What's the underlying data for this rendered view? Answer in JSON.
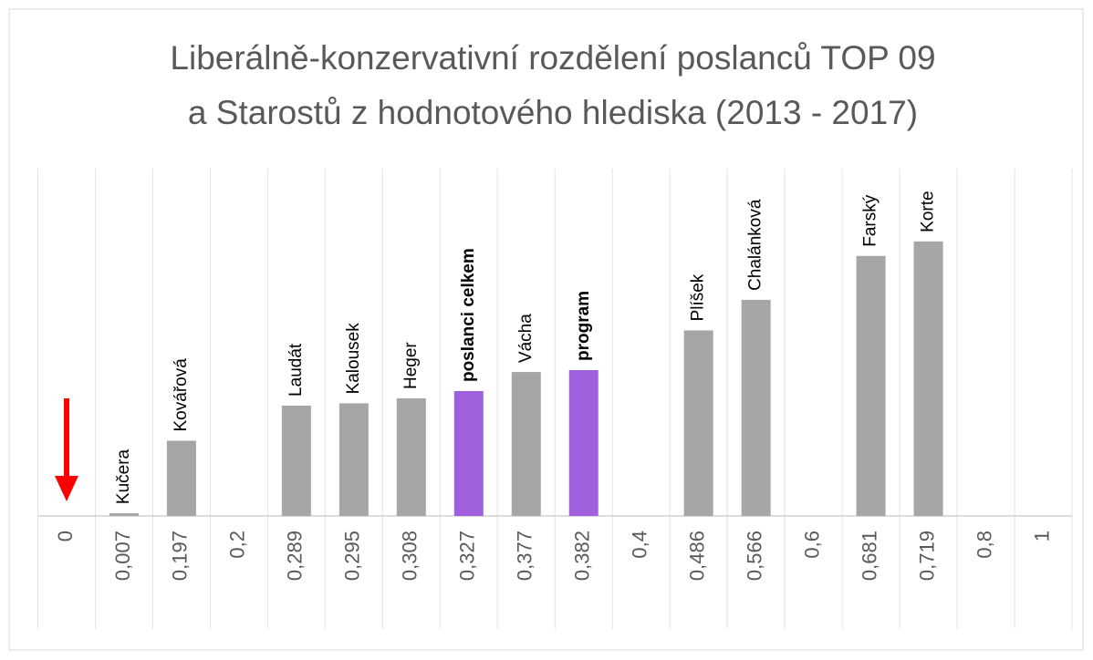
{
  "chart_data": {
    "type": "bar",
    "title": "Liberálně-konzervativní rozdělení poslanců TOP 09",
    "subtitle": "a Starostů z hodnotového hlediska (2013 - 2017)",
    "categories": [
      "0",
      "0,007",
      "0,197",
      "0,2",
      "0,289",
      "0,295",
      "0,308",
      "0,327",
      "0,377",
      "0,382",
      "0,4",
      "0,486",
      "0,566",
      "0,6",
      "0,681",
      "0,719",
      "0,8",
      "1"
    ],
    "values": [
      null,
      0.007,
      0.197,
      null,
      0.289,
      0.295,
      0.308,
      0.327,
      0.377,
      0.382,
      null,
      0.486,
      0.566,
      null,
      0.681,
      0.719,
      null,
      null
    ],
    "value_labels": [
      null,
      "Kučera",
      "Kovářová",
      null,
      "Laudát",
      "Kalousek",
      "Heger",
      "poslanci celkem",
      "Vácha",
      "program",
      null,
      "Plíšek",
      "Chalánková",
      null,
      "Farský",
      "Korte",
      null,
      null
    ],
    "color": "#a6a6a6",
    "colors": [
      "#a6a6a6",
      "#a6a6a6",
      "#a6a6a6",
      "#a6a6a6",
      "#a6a6a6",
      "#a6a6a6",
      "#a6a6a6",
      "#a05fdc",
      "#a6a6a6",
      "#a05fdc",
      "#a6a6a6",
      "#a6a6a6",
      "#a6a6a6",
      "#a6a6a6",
      "#a6a6a6",
      "#a6a6a6",
      "#a6a6a6",
      "#a6a6a6"
    ],
    "ylim": [
      0,
      0.9
    ],
    "grid": true
  }
}
